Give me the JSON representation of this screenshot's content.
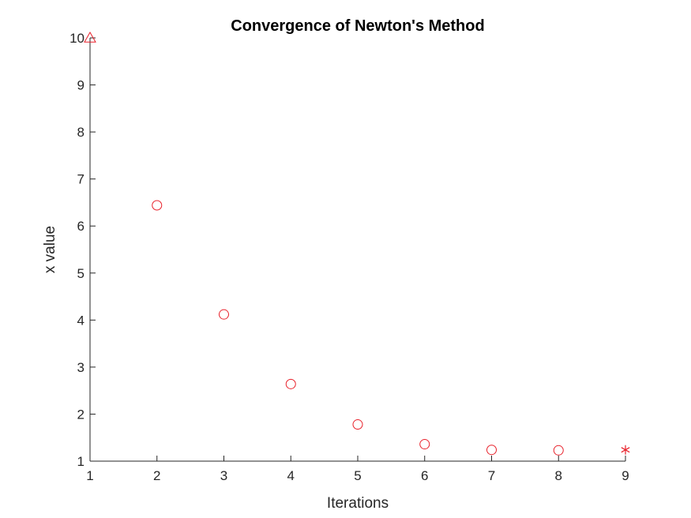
{
  "chart_data": {
    "type": "scatter",
    "title": "Convergence of Newton's Method",
    "xlabel": "Iterations",
    "ylabel": "x value",
    "xlim": [
      1,
      9
    ],
    "ylim": [
      1,
      10
    ],
    "xticks": [
      1,
      2,
      3,
      4,
      5,
      6,
      7,
      8,
      9
    ],
    "yticks": [
      1,
      2,
      3,
      4,
      5,
      6,
      7,
      8,
      9,
      10
    ],
    "grid": false,
    "marker_color": "#e8202a",
    "axis_color": "#262626",
    "points": [
      {
        "x": 1,
        "y": 10,
        "marker": "triangle"
      },
      {
        "x": 2,
        "y": 6.44,
        "marker": "circle"
      },
      {
        "x": 3,
        "y": 4.12,
        "marker": "circle"
      },
      {
        "x": 4,
        "y": 2.64,
        "marker": "circle"
      },
      {
        "x": 5,
        "y": 1.78,
        "marker": "circle"
      },
      {
        "x": 6,
        "y": 1.36,
        "marker": "circle"
      },
      {
        "x": 7,
        "y": 1.24,
        "marker": "circle"
      },
      {
        "x": 8,
        "y": 1.23,
        "marker": "circle"
      },
      {
        "x": 9,
        "y": 1.24,
        "marker": "star"
      }
    ]
  }
}
